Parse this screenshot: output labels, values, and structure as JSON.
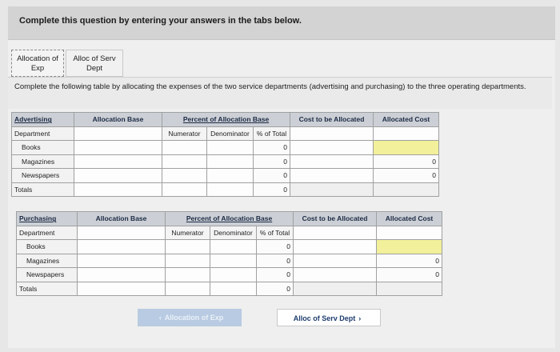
{
  "header": {
    "title": "Complete this question by entering your answers in the tabs below."
  },
  "tabs": [
    {
      "line1": "Allocation of",
      "line2": "Exp"
    },
    {
      "line1": "Alloc of Serv",
      "line2": "Dept"
    }
  ],
  "instructions": "Complete the following table by allocating the expenses of the two service departments (advertising and purchasing) to the three operating departments.",
  "advertising": {
    "title": "Advertising",
    "department_label": "Department",
    "allocation_base_header": "Allocation Base",
    "percent_header": "Percent of Allocation Base",
    "numerator_label": "Numerator",
    "denominator_label": "Denominator",
    "percent_total_label": "% of Total",
    "cost_header": "Cost to be Allocated",
    "allocated_header": "Allocated Cost",
    "rows": [
      {
        "label": "Books",
        "percent": "0",
        "allocated": ""
      },
      {
        "label": "Magazines",
        "percent": "0",
        "allocated": "0"
      },
      {
        "label": "Newspapers",
        "percent": "0",
        "allocated": "0"
      }
    ],
    "totals_label": "Totals",
    "totals_percent": "0"
  },
  "purchasing": {
    "title": "Purchasing",
    "department_label": "Department",
    "allocation_base_header": "Allocation Base",
    "percent_header": "Percent of Allocation Base",
    "numerator_label": "Numerator",
    "denominator_label": "Denominator",
    "percent_total_label": "% of Total",
    "cost_header": "Cost to be Allocated",
    "allocated_header": "Allocated Cost",
    "rows": [
      {
        "label": "Books",
        "percent": "0",
        "allocated": ""
      },
      {
        "label": "Magazines",
        "percent": "0",
        "allocated": "0"
      },
      {
        "label": "Newspapers",
        "percent": "0",
        "allocated": "0"
      }
    ],
    "totals_label": "Totals",
    "totals_percent": "0"
  },
  "nav": {
    "prev_label": "Allocation of Exp",
    "next_label": "Alloc of Serv Dept",
    "prev_icon": "chevron-left-icon",
    "next_icon": "chevron-right-icon"
  },
  "colors": {
    "header_cell": "#ccd0d6",
    "highlight": "#f2f09a",
    "next_text": "#1d3c6f"
  }
}
